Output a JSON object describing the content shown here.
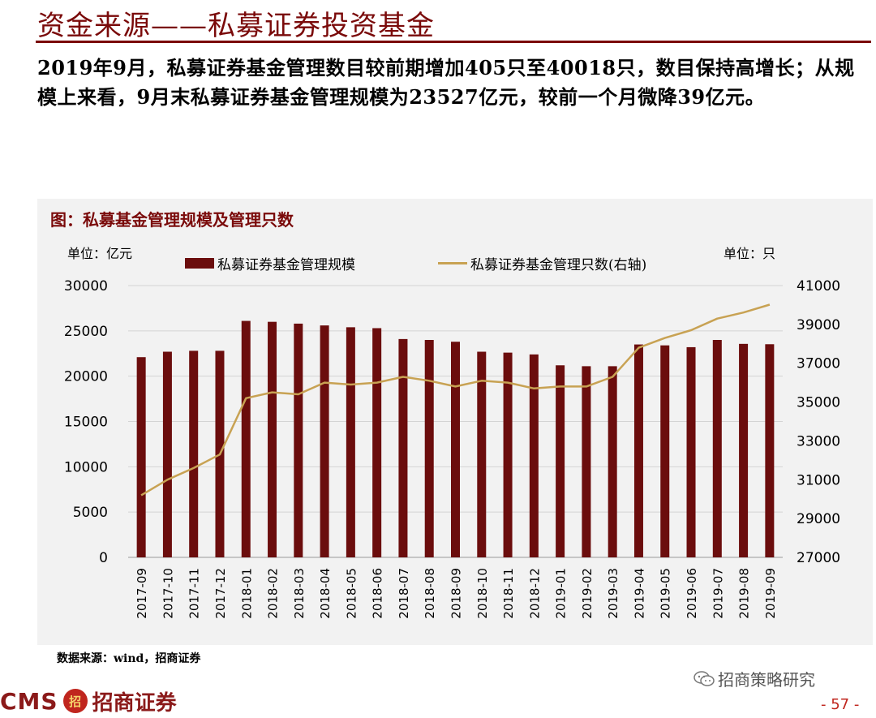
{
  "header": {
    "title": "资金来源——私募证券投资基金"
  },
  "intro": {
    "text": "2019年9月，私募证券基金管理数目较前期增加405只至40018只，数目保持高增长；从规模上来看，9月末私募证券基金管理规模为23527亿元，较前一个月微降39亿元。"
  },
  "chart_data": {
    "type": "bar",
    "title": "图：私募基金管理规模及管理只数",
    "unit_left": "单位：亿元",
    "unit_right": "单位：只",
    "categories": [
      "2017-09",
      "2017-10",
      "2017-11",
      "2017-12",
      "2018-01",
      "2018-02",
      "2018-03",
      "2018-04",
      "2018-05",
      "2018-06",
      "2018-07",
      "2018-08",
      "2018-09",
      "2018-10",
      "2018-11",
      "2018-12",
      "2019-01",
      "2019-02",
      "2019-03",
      "2019-04",
      "2019-05",
      "2019-06",
      "2019-07",
      "2019-08",
      "2019-09"
    ],
    "series": [
      {
        "name": "私募证券基金管理规模",
        "type": "bar",
        "axis": "left",
        "values": [
          22100,
          22700,
          22800,
          22800,
          26100,
          26000,
          25800,
          25600,
          25400,
          25300,
          24100,
          24000,
          23800,
          22700,
          22600,
          22400,
          21200,
          21100,
          21100,
          23500,
          23400,
          23200,
          24000,
          23566,
          23527
        ]
      },
      {
        "name": "私募证券基金管理只数(右轴)",
        "type": "line",
        "axis": "right",
        "values": [
          30200,
          31000,
          31600,
          32300,
          35200,
          35500,
          35400,
          36000,
          35900,
          36000,
          36300,
          36100,
          35800,
          36100,
          36000,
          35700,
          35800,
          35800,
          36300,
          37800,
          38300,
          38700,
          39300,
          39613,
          40018
        ]
      }
    ],
    "y_left": {
      "min": 0,
      "max": 30000,
      "ticks": [
        "0",
        "5000",
        "10000",
        "15000",
        "20000",
        "25000",
        "30000"
      ]
    },
    "y_right": {
      "min": 27000,
      "max": 41000,
      "ticks": [
        "27000",
        "29000",
        "31000",
        "33000",
        "35000",
        "37000",
        "39000",
        "41000"
      ]
    },
    "grid": true,
    "legend_position": "top"
  },
  "footer": {
    "source": "数据来源：wind，招商证券",
    "logo_text": "CMS",
    "logo_mark": "招",
    "logo_cn": "招商证券",
    "wechat_text": "招商策略研究",
    "page": "- 57 -"
  },
  "colors": {
    "brand": "#7a0a0a",
    "bar": "#6b0d0d",
    "line": "#c8a253",
    "panel": "#f2f2f2"
  }
}
